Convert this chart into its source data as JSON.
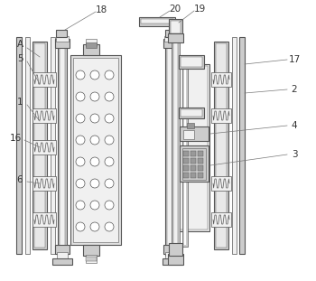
{
  "bg_color": "#ffffff",
  "lc": "#555555",
  "lc_ann": "#777777",
  "fl": "#cccccc",
  "fw": "#f0f0f0",
  "fd": "#999999",
  "dc": "#333333",
  "figsize": [
    3.5,
    3.11
  ],
  "dpi": 100
}
